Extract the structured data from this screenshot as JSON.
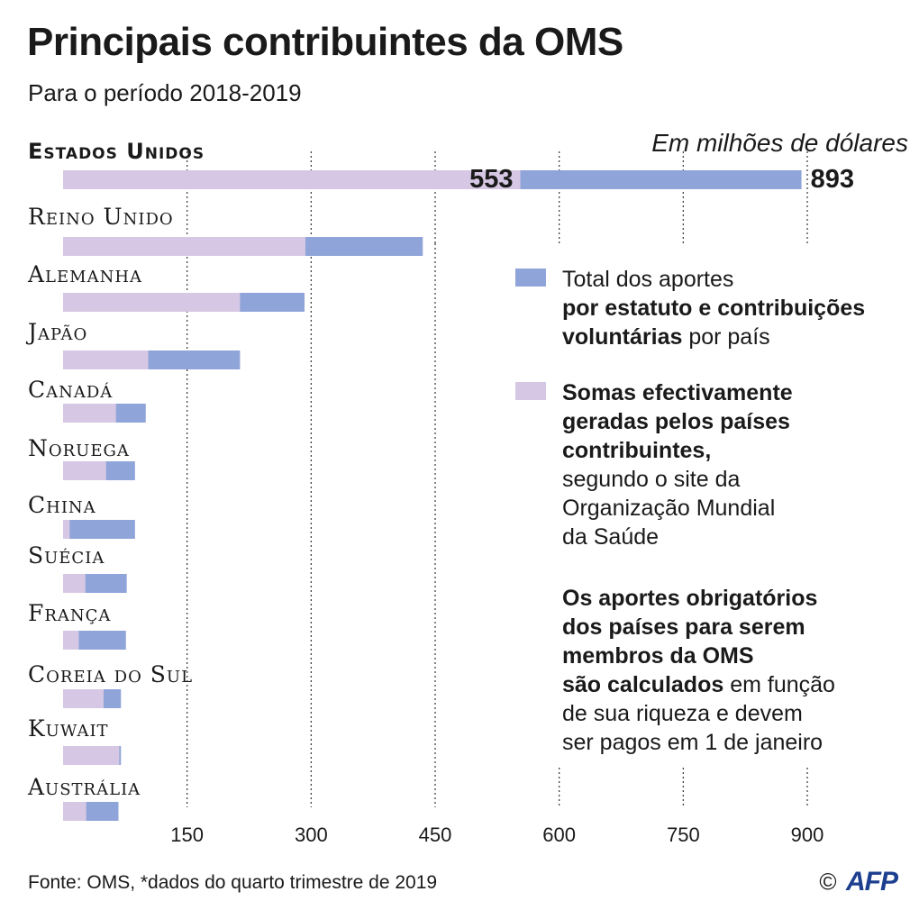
{
  "title": "Principais contribuintes da OMS",
  "subtitle": "Para o período 2018-2019",
  "unit_label": "Em milhões de dólares",
  "colors": {
    "total": "#8fa4d8",
    "effective": "#d6c8e4",
    "grid": "#333333"
  },
  "chart_data": {
    "type": "bar",
    "orientation": "horizontal",
    "stacked": "overlay",
    "categories": [
      "Estados Unidos",
      "Reino Unido",
      "Alemanha",
      "Japão",
      "Canadá",
      "Noruega",
      "China",
      "Suécia",
      "França",
      "Coreia do Sul",
      "Kuwait",
      "Austrália"
    ],
    "series": [
      {
        "key": "total",
        "values": [
          893,
          435,
          292,
          214,
          100,
          87,
          87,
          77,
          76,
          70,
          70,
          67
        ]
      },
      {
        "key": "effective",
        "values": [
          553,
          293,
          214,
          103,
          64,
          52,
          8,
          27,
          19,
          49,
          68,
          28
        ]
      }
    ],
    "data_labels": {
      "effective_first": "553",
      "total_first": "893"
    },
    "xticks": [
      150,
      300,
      450,
      600,
      750,
      900
    ],
    "xlim": [
      0,
      900
    ],
    "grid": "vertical dotted"
  },
  "legend": {
    "total": {
      "line1": "Total dos aportes",
      "line2": "por estatuto e contribuições",
      "line3_bold": "voluntárias",
      "line3_rest": " por país"
    },
    "effective": {
      "bold1": "Somas efectivamente",
      "bold2": "geradas pelos países",
      "bold3": "contribuintes,",
      "line4": "segundo o site da",
      "line5": "Organização Mundial",
      "line6": "da Saúde"
    }
  },
  "note": {
    "bold1": "Os aportes obrigatórios",
    "bold2": "dos países para serem",
    "bold3": "membros da OMS",
    "bold4": "são calculados",
    "rest4": " em função",
    "line5": "de sua riqueza e devem",
    "line6": "ser pagos em 1 de janeiro"
  },
  "source": "Fonte: OMS, *dados do quarto trimestre de 2019",
  "credit": {
    "copyright": "©",
    "logo_text": "AFP"
  }
}
